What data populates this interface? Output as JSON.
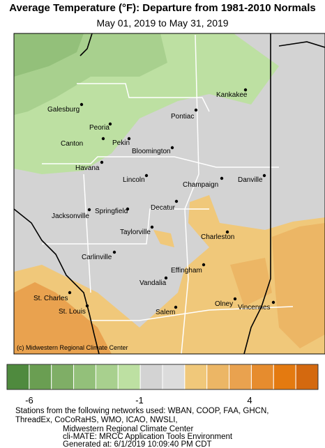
{
  "header": {
    "title": "Average Temperature (°F): Departure from 1981-2010 Normals",
    "subtitle": "May 01, 2019 to May 31, 2019"
  },
  "map": {
    "credit": "(c) Midwestern Regional Climate Center",
    "cities": [
      "Galesburg",
      "Peoria",
      "Canton",
      "Pekin",
      "Kankakee",
      "Pontiac",
      "Bloomington",
      "Havana",
      "Lincoln",
      "Champaign",
      "Danville",
      "Decatur",
      "Jacksonville",
      "Springfield",
      "Taylorville",
      "Charleston",
      "Carlinville",
      "Effingham",
      "Vandalia",
      "St. Charles",
      "Olney",
      "Vincennes",
      "St. Louis",
      "Salem"
    ]
  },
  "legend": {
    "colors": [
      "#4f8a3e",
      "#6a9e52",
      "#7fae66",
      "#93c07a",
      "#a8d08e",
      "#bde0a2",
      "#d3d3d3",
      "#dcdcdc",
      "#f0c87a",
      "#ecb665",
      "#e9a24f",
      "#e68c2e",
      "#e47a10",
      "#d4690f"
    ],
    "labels": [
      "-6",
      "-1",
      "4"
    ]
  },
  "footer": [
    "Stations from the following networks used: WBAN, COOP, FAA, GHCN,",
    "ThreadEx, CoCoRaHS, WMO, ICAO, NWSLI,",
    "Midwestern Regional Climate Center",
    "cli-MATE: MRCC Application Tools Environment",
    "Generated at: 6/1/2019 10:09:40 PM CDT"
  ]
}
